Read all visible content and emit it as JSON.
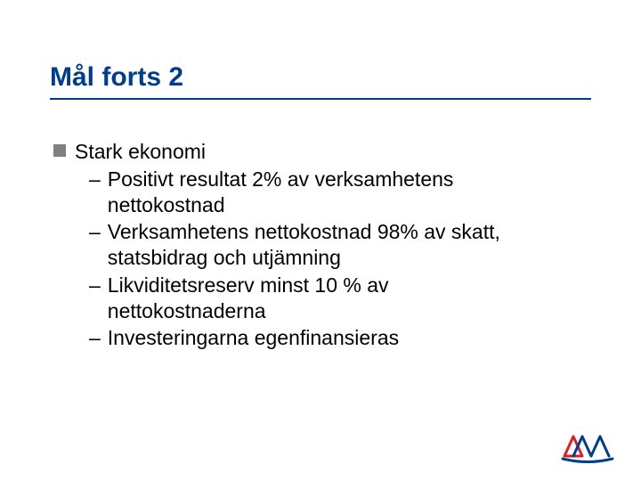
{
  "title": {
    "text": "Mål forts 2",
    "color": "#003e8a",
    "fontsize": 30,
    "underline_color": "#003e8a"
  },
  "body": {
    "text_color": "#000000",
    "fontsize": 23,
    "level1_bullet_color": "#808080",
    "items": [
      {
        "text": "Stark ekonomi",
        "children": [
          "Positivt resultat 2% av verksamhetens nettokostnad",
          "Verksamhetens nettokostnad 98% av skatt, statsbidrag och utjämning",
          "Likviditetsreserv minst 10 % av nettokostnaderna",
          "Investeringarna egenfinansieras"
        ]
      }
    ]
  },
  "logo": {
    "primary_color": "#003e8a",
    "accent_color": "#d6212a"
  },
  "background_color": "#ffffff"
}
